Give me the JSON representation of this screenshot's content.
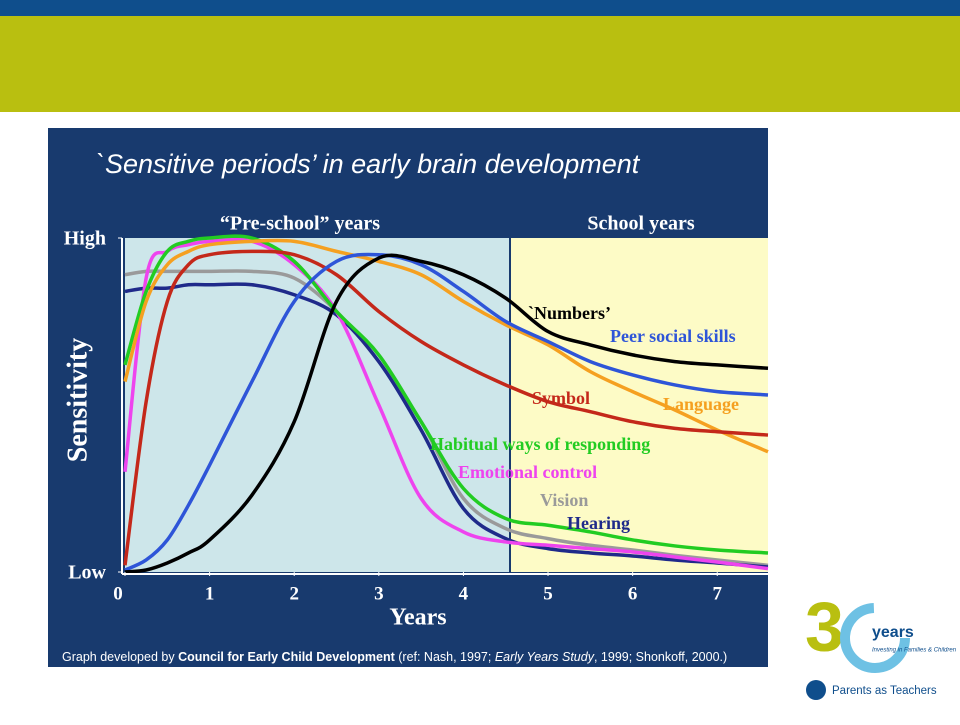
{
  "chart_data": {
    "type": "line",
    "title": "`Sensitive periods’ in early brain development",
    "region_labels": [
      "“Pre-school” years",
      "School years"
    ],
    "y_label": "Sensitivity",
    "x_label": "Years",
    "x": [
      0,
      0.25,
      0.5,
      0.75,
      1,
      1.5,
      2,
      2.5,
      3,
      3.5,
      4,
      4.5,
      5,
      5.5,
      6,
      6.5,
      7,
      7.6
    ],
    "xlim": [
      0,
      7.6
    ],
    "xticks": [
      0,
      1,
      2,
      3,
      4,
      5,
      6,
      7
    ],
    "ylim": [
      0,
      10
    ],
    "yticks": [
      {
        "value": 0,
        "label": "Low"
      },
      {
        "value": 10,
        "label": "High"
      }
    ],
    "series": [
      {
        "name": "Vision",
        "color": "#9a9a9a",
        "values": [
          8.9,
          9.0,
          9.0,
          9.0,
          9.0,
          9.0,
          8.8,
          7.8,
          6.3,
          4.5,
          2.2,
          1.3,
          1.0,
          0.8,
          0.66,
          0.5,
          0.36,
          0.2
        ]
      },
      {
        "name": "Hearing",
        "color": "#1f2a8a",
        "values": [
          8.4,
          8.5,
          8.5,
          8.6,
          8.6,
          8.6,
          8.3,
          7.7,
          6.3,
          4.25,
          1.9,
          1.0,
          0.7,
          0.57,
          0.48,
          0.36,
          0.27,
          0.15
        ]
      },
      {
        "name": "Emotional control",
        "color": "#ee44ee",
        "values": [
          3,
          8.8,
          9.6,
          9.8,
          9.9,
          9.9,
          9.2,
          7.8,
          5.0,
          2.2,
          1.2,
          0.9,
          0.8,
          0.7,
          0.6,
          0.45,
          0.3,
          0.1
        ]
      },
      {
        "name": "Habitual ways of responding",
        "color": "#22cc22",
        "values": [
          6.2,
          8.4,
          9.6,
          9.9,
          10,
          10,
          9.3,
          7.8,
          6.5,
          4.5,
          2.5,
          1.6,
          1.4,
          1.2,
          0.96,
          0.78,
          0.66,
          0.57
        ]
      },
      {
        "name": "Language",
        "color": "#f5a020",
        "values": [
          5.7,
          8.1,
          9.2,
          9.6,
          9.8,
          9.9,
          9.9,
          9.6,
          9.3,
          8.9,
          8.1,
          7.4,
          6.8,
          6.0,
          5.4,
          4.85,
          4.25,
          3.6
        ]
      },
      {
        "name": "Symbol",
        "color": "#c4281a",
        "values": [
          0.2,
          5.1,
          8.1,
          9.2,
          9.5,
          9.6,
          9.5,
          8.9,
          7.8,
          6.9,
          6.2,
          5.6,
          5.1,
          4.8,
          4.5,
          4.3,
          4.2,
          4.1
        ]
      },
      {
        "name": "Peer social skills",
        "color": "#2e55d8",
        "values": [
          0.06,
          0.36,
          0.96,
          2.0,
          3.2,
          5.7,
          8.1,
          9.3,
          9.5,
          9.2,
          8.4,
          7.5,
          6.9,
          6.3,
          5.9,
          5.6,
          5.4,
          5.3
        ]
      },
      {
        "name": "`Numbers’",
        "color": "#000000",
        "values": [
          0,
          0.06,
          0.27,
          0.57,
          0.96,
          2.3,
          4.5,
          8.1,
          9.4,
          9.3,
          8.9,
          8.2,
          7.2,
          6.8,
          6.5,
          6.3,
          6.2,
          6.1
        ]
      }
    ],
    "footer": [
      "Graph developed by ",
      "Council for Early Child Development",
      " (ref: Nash, 1997; ",
      "Early Years Study",
      ", 1999; Shonkoff, 2000.)"
    ]
  },
  "logo": {
    "number": "3",
    "word": "years",
    "tagline": "Investing in Families & Children",
    "org": "Parents as Teachers"
  }
}
